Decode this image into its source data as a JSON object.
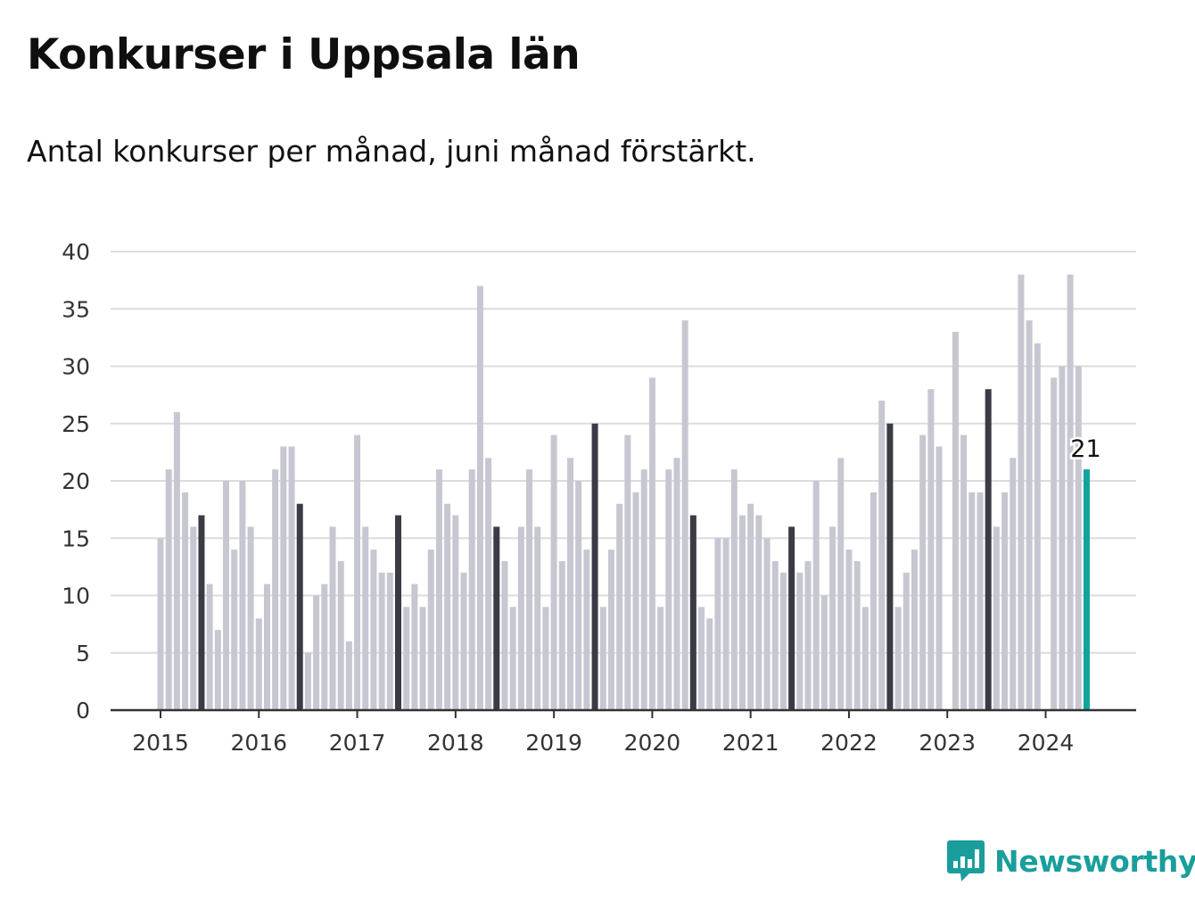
{
  "title": "Konkurser i Uppsala län",
  "subtitle": "Antal konkurser per månad, juni månad förstärkt.",
  "logo": {
    "text": "Newsworthy",
    "icon": "bar-chart-speech-bubble-icon"
  },
  "colors": {
    "bar": "#c7c7d1",
    "june_bar": "#3b3b46",
    "latest_bar": "#13a39b",
    "grid": "#dcdcdf",
    "axis": "#333333",
    "brand": "#1a9e9c"
  },
  "chart_data": {
    "type": "bar",
    "title": "Konkurser i Uppsala län",
    "subtitle": "Antal konkurser per månad, juni månad förstärkt.",
    "xlabel": "",
    "ylabel": "",
    "ylim": [
      0,
      40
    ],
    "yticks": [
      0,
      5,
      10,
      15,
      20,
      25,
      30,
      35,
      40
    ],
    "xticks": [
      "2015",
      "2016",
      "2017",
      "2018",
      "2019",
      "2020",
      "2021",
      "2022",
      "2023",
      "2024"
    ],
    "grid": true,
    "highlight": "June of each year; latest month 2024-06",
    "annotation": {
      "month": "2024-06",
      "text": "21"
    },
    "series": [
      {
        "year": "2015",
        "values": [
          15,
          21,
          26,
          19,
          16,
          17,
          11,
          7,
          20,
          14,
          20,
          16
        ]
      },
      {
        "year": "2016",
        "values": [
          8,
          11,
          21,
          23,
          23,
          18,
          5,
          10,
          11,
          16,
          13,
          6
        ]
      },
      {
        "year": "2017",
        "values": [
          24,
          16,
          14,
          12,
          12,
          17,
          9,
          11,
          9,
          14,
          21,
          18
        ]
      },
      {
        "year": "2018",
        "values": [
          17,
          12,
          21,
          37,
          22,
          16,
          13,
          9,
          16,
          21,
          16,
          9
        ]
      },
      {
        "year": "2019",
        "values": [
          24,
          13,
          22,
          20,
          14,
          25,
          9,
          14,
          18,
          24,
          19,
          21
        ]
      },
      {
        "year": "2020",
        "values": [
          29,
          9,
          21,
          22,
          34,
          17,
          9,
          8,
          15,
          15,
          21,
          17
        ]
      },
      {
        "year": "2021",
        "values": [
          18,
          17,
          15,
          13,
          12,
          16,
          12,
          13,
          20,
          10,
          16,
          22
        ]
      },
      {
        "year": "2022",
        "values": [
          14,
          13,
          9,
          19,
          27,
          25,
          9,
          12,
          14,
          24,
          28,
          23
        ]
      },
      {
        "year": "2023",
        "values": [
          0,
          33,
          24,
          19,
          19,
          28,
          16,
          19,
          22,
          38,
          34,
          32
        ]
      },
      {
        "year": "2024",
        "values": [
          0,
          29,
          30,
          38,
          30,
          21
        ]
      }
    ]
  }
}
